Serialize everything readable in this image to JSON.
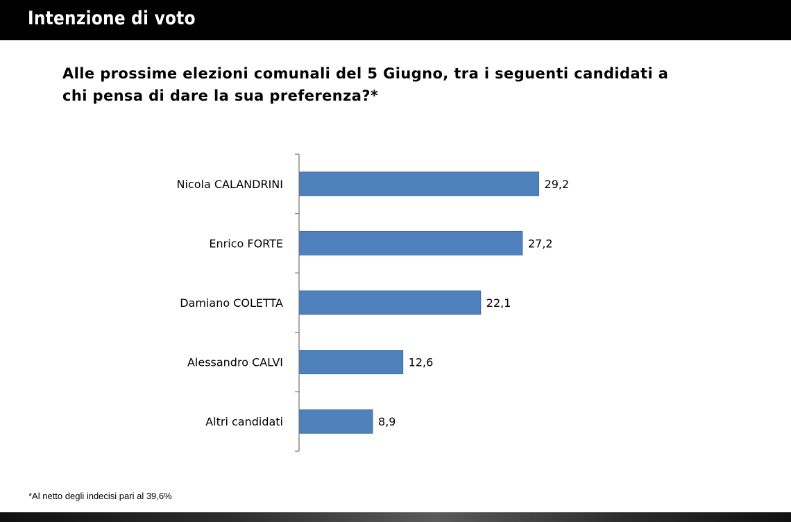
{
  "header": {
    "title": "Intenzione di voto"
  },
  "question": {
    "text": "Alle prossime elezioni comunali del 5 Giugno, tra i seguenti candidati a chi pensa di dare la sua preferenza?*"
  },
  "footnote": {
    "text": "*Al netto degli indecisi pari al 39,6%"
  },
  "colors": {
    "bar": "#4f81bd",
    "bar_border": "#3f6fa8",
    "axis": "#8c8c8c",
    "header_bg": "#000000"
  },
  "chart_data": {
    "type": "bar",
    "orientation": "horizontal",
    "title": "",
    "xlabel": "",
    "ylabel": "",
    "categories": [
      "Nicola CALANDRINI",
      "Enrico FORTE",
      "Damiano COLETTA",
      "Alessandro CALVI",
      "Altri candidati"
    ],
    "values": [
      29.2,
      27.2,
      22.1,
      12.6,
      8.9
    ],
    "value_labels": [
      "29,2",
      "27,2",
      "22,1",
      "12,6",
      "8,9"
    ],
    "xlim": [
      0,
      35
    ],
    "grid": false,
    "legend": "none"
  }
}
